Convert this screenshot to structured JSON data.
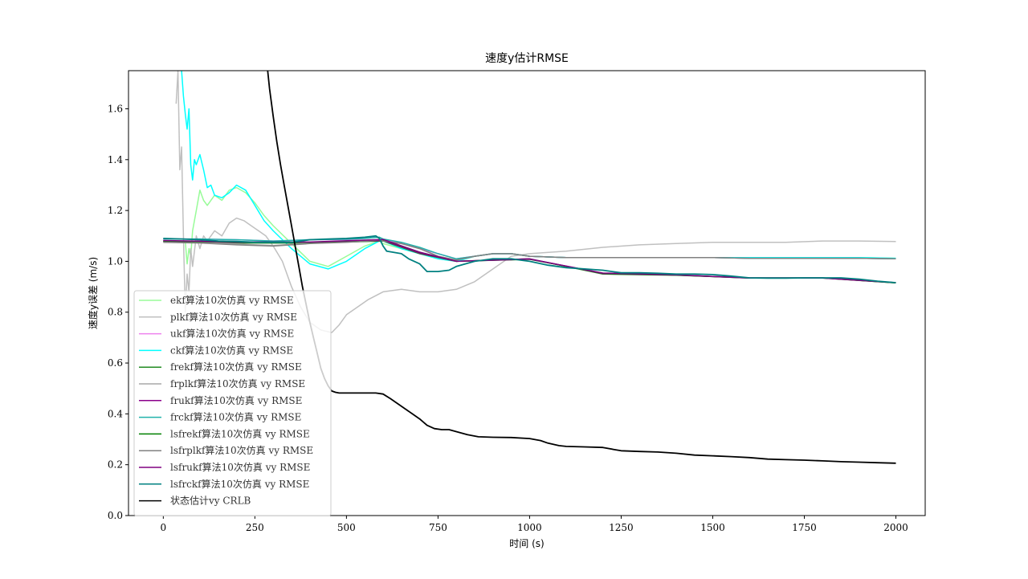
{
  "chart_data": {
    "type": "line",
    "title": "速度y估计RMSE",
    "xlabel": "时间 (s)",
    "ylabel": "速度y误差 (m/s)",
    "xlim": [
      -95,
      2080
    ],
    "ylim": [
      0,
      1.75
    ],
    "xticks": [
      0,
      250,
      500,
      750,
      1000,
      1250,
      1500,
      1750,
      2000
    ],
    "yticks": [
      0.0,
      0.2,
      0.4,
      0.6,
      0.8,
      1.0,
      1.2,
      1.4,
      1.6
    ],
    "xtick_labels": [
      "0",
      "250",
      "500",
      "750",
      "1000",
      "1250",
      "1500",
      "1750",
      "2000"
    ],
    "ytick_labels": [
      "0.0",
      "0.2",
      "0.4",
      "0.6",
      "0.8",
      "1.0",
      "1.2",
      "1.4",
      "1.6"
    ],
    "grid": false,
    "legend_position": "lower-left",
    "series": [
      {
        "name": "ekf算法10次仿真 vy RMSE",
        "color": "#98fb98",
        "width": 1.5,
        "x": [
          60,
          65,
          70,
          75,
          80,
          90,
          100,
          110,
          120,
          140,
          160,
          180,
          200,
          225,
          250,
          275,
          300,
          350,
          400,
          450,
          500,
          550,
          590,
          600,
          650,
          700,
          750,
          800,
          850,
          900,
          950,
          1000,
          1100,
          1200,
          1300,
          1400,
          1500,
          1600,
          1700,
          1800,
          1900,
          2000
        ],
        "y": [
          1.08,
          0.99,
          1.05,
          1.02,
          1.12,
          1.2,
          1.28,
          1.24,
          1.22,
          1.26,
          1.24,
          1.28,
          1.29,
          1.27,
          1.23,
          1.18,
          1.14,
          1.07,
          1.0,
          0.98,
          1.02,
          1.06,
          1.08,
          1.07,
          1.05,
          1.03,
          1.01,
          1.0,
          1.02,
          1.03,
          1.03,
          1.02,
          1.015,
          1.015,
          1.015,
          1.015,
          1.015,
          1.015,
          1.015,
          1.015,
          1.015,
          1.012
        ]
      },
      {
        "name": "plkf算法10次仿真 vy RMSE",
        "color": "#c0c0c0",
        "width": 1.5,
        "x": [
          35,
          40,
          45,
          50,
          55,
          60,
          65,
          70,
          75,
          80,
          90,
          100,
          110,
          120,
          140,
          160,
          180,
          200,
          220,
          240,
          260,
          280,
          300,
          325,
          350,
          375,
          400,
          430,
          460,
          480,
          500,
          530,
          560,
          600,
          650,
          700,
          750,
          800,
          850,
          900,
          950,
          1000,
          1100,
          1200,
          1300,
          1400,
          1500,
          1600,
          1700,
          1800,
          1850,
          1900,
          2000
        ],
        "y": [
          1.62,
          1.75,
          1.36,
          1.45,
          1.1,
          0.8,
          0.95,
          0.88,
          1.05,
          0.98,
          1.1,
          1.05,
          1.1,
          1.08,
          1.12,
          1.1,
          1.15,
          1.17,
          1.16,
          1.14,
          1.12,
          1.1,
          1.06,
          1.0,
          0.9,
          0.82,
          0.76,
          0.73,
          0.72,
          0.75,
          0.79,
          0.82,
          0.85,
          0.88,
          0.89,
          0.88,
          0.88,
          0.89,
          0.92,
          0.97,
          1.02,
          1.03,
          1.04,
          1.055,
          1.065,
          1.07,
          1.075,
          1.075,
          1.075,
          1.08,
          1.08,
          1.08,
          1.078
        ]
      },
      {
        "name": "ukf算法10次仿真 vy RMSE",
        "color": "#ee82ee",
        "width": 1.5,
        "x": [
          0,
          100,
          200,
          300,
          400,
          500,
          550,
          590,
          600,
          650,
          700,
          750,
          800,
          850,
          900,
          950,
          1000,
          1100,
          1200,
          1300,
          1400,
          1500,
          1600,
          1700,
          1800,
          1900,
          2000
        ],
        "y": [
          1.088,
          1.088,
          1.085,
          1.08,
          1.085,
          1.085,
          1.09,
          1.095,
          1.085,
          1.07,
          1.05,
          1.03,
          1.01,
          1.02,
          1.03,
          1.03,
          1.02,
          1.015,
          1.015,
          1.015,
          1.015,
          1.015,
          1.012,
          1.012,
          1.012,
          1.012,
          1.01
        ]
      },
      {
        "name": "ckf算法10次仿真 vy RMSE",
        "color": "#00ffff",
        "width": 1.5,
        "x": [
          50,
          55,
          60,
          65,
          70,
          75,
          80,
          85,
          90,
          100,
          110,
          120,
          130,
          140,
          160,
          180,
          200,
          225,
          250,
          275,
          300,
          350,
          400,
          450,
          500,
          550,
          590,
          600,
          650,
          700,
          750,
          800,
          850,
          900,
          950,
          1000,
          1100,
          1200,
          1300,
          1400,
          1500,
          1600,
          1700,
          1800,
          1900,
          2000
        ],
        "y": [
          1.75,
          1.65,
          1.58,
          1.52,
          1.6,
          1.38,
          1.32,
          1.4,
          1.38,
          1.42,
          1.36,
          1.29,
          1.3,
          1.26,
          1.25,
          1.27,
          1.3,
          1.28,
          1.22,
          1.16,
          1.12,
          1.05,
          0.99,
          0.97,
          1.0,
          1.05,
          1.08,
          1.08,
          1.05,
          1.03,
          1.01,
          1.0,
          1.02,
          1.03,
          1.03,
          1.02,
          1.015,
          1.015,
          1.015,
          1.015,
          1.015,
          1.015,
          1.015,
          1.015,
          1.015,
          1.012
        ]
      },
      {
        "name": "frekf算法10次仿真 vy RMSE",
        "color": "#228b22",
        "width": 1.5,
        "x": [
          0,
          200,
          400,
          600,
          700,
          800,
          1000,
          1200,
          1400,
          1600,
          1800,
          2000
        ],
        "y": [
          1.078,
          1.072,
          1.072,
          1.08,
          1.03,
          1.0,
          1.01,
          0.95,
          0.945,
          0.935,
          0.935,
          0.915
        ]
      },
      {
        "name": "frplkf算法10次仿真 vy RMSE",
        "color": "#a9a9a9",
        "width": 1.5,
        "x": [
          0,
          100,
          200,
          300,
          400,
          500,
          590,
          600,
          650,
          700,
          750,
          800,
          850,
          900,
          950,
          1000,
          1100,
          1200,
          1300,
          1400,
          1500,
          1600,
          1700,
          1800,
          1900,
          2000
        ],
        "y": [
          1.078,
          1.075,
          1.068,
          1.062,
          1.072,
          1.078,
          1.085,
          1.08,
          1.07,
          1.05,
          1.02,
          1.005,
          1.02,
          1.03,
          1.03,
          1.02,
          1.015,
          1.015,
          1.015,
          1.015,
          1.015,
          1.012,
          1.012,
          1.012,
          1.012,
          1.01
        ]
      },
      {
        "name": "frukf算法10次仿真 vy RMSE",
        "color": "#8b008b",
        "width": 1.5,
        "x": [
          0,
          200,
          400,
          600,
          700,
          800,
          1000,
          1200,
          1400,
          1600,
          1800,
          2000
        ],
        "y": [
          1.08,
          1.075,
          1.075,
          1.082,
          1.032,
          1.0,
          1.01,
          0.952,
          0.946,
          0.935,
          0.935,
          0.916
        ]
      },
      {
        "name": "frckf算法10次仿真 vy RMSE",
        "color": "#20b2aa",
        "width": 1.5,
        "x": [
          0,
          100,
          200,
          300,
          400,
          500,
          550,
          590,
          600,
          650,
          700,
          750,
          800,
          850,
          900,
          950,
          1000,
          1100,
          1200,
          1300,
          1400,
          1500,
          1600,
          1700,
          1800,
          1900,
          2000
        ],
        "y": [
          1.088,
          1.088,
          1.085,
          1.08,
          1.085,
          1.087,
          1.09,
          1.095,
          1.088,
          1.075,
          1.055,
          1.03,
          1.01,
          1.02,
          1.03,
          1.03,
          1.02,
          1.015,
          1.015,
          1.015,
          1.015,
          1.015,
          1.012,
          1.012,
          1.012,
          1.012,
          1.01
        ]
      },
      {
        "name": "lsfrekf算法10次仿真 vy RMSE",
        "color": "#008000",
        "width": 1.5,
        "x": [
          0,
          200,
          400,
          600,
          700,
          800,
          1000,
          1200,
          1400,
          1600,
          1800,
          2000
        ],
        "y": [
          1.08,
          1.076,
          1.075,
          1.085,
          1.035,
          1.0,
          1.008,
          0.953,
          0.946,
          0.934,
          0.934,
          0.915
        ]
      },
      {
        "name": "lsfrplkf算法10次仿真 vy RMSE",
        "color": "#808080",
        "width": 1.5,
        "x": [
          0,
          100,
          200,
          300,
          350,
          400,
          500,
          560,
          590,
          600,
          650,
          700,
          750,
          800,
          850,
          900,
          950,
          1000,
          1100,
          1200,
          1300,
          1400,
          1500,
          1600,
          1700,
          1800,
          1900,
          2000
        ],
        "y": [
          1.075,
          1.072,
          1.065,
          1.06,
          1.065,
          1.07,
          1.075,
          1.08,
          1.085,
          1.08,
          1.07,
          1.05,
          1.02,
          1.005,
          1.02,
          1.03,
          1.03,
          1.02,
          1.015,
          1.015,
          1.015,
          1.015,
          1.015,
          1.012,
          1.012,
          1.012,
          1.012,
          1.01
        ]
      },
      {
        "name": "lsfrukf算法10次仿真 vy RMSE",
        "color": "#800080",
        "width": 1.5,
        "x": [
          0,
          200,
          400,
          600,
          700,
          800,
          1000,
          1200,
          1400,
          1600,
          1800,
          2000
        ],
        "y": [
          1.082,
          1.077,
          1.076,
          1.086,
          1.036,
          1.0,
          1.009,
          0.954,
          0.947,
          0.934,
          0.934,
          0.916
        ]
      },
      {
        "name": "lsfrckf算法10次仿真 vy RMSE",
        "color": "#008080",
        "width": 1.8,
        "x": [
          0,
          50,
          100,
          150,
          200,
          250,
          300,
          350,
          400,
          450,
          500,
          550,
          580,
          590,
          600,
          610,
          650,
          670,
          700,
          720,
          750,
          780,
          800,
          850,
          900,
          950,
          1000,
          1050,
          1100,
          1150,
          1200,
          1250,
          1300,
          1350,
          1400,
          1450,
          1500,
          1550,
          1600,
          1650,
          1700,
          1750,
          1800,
          1850,
          1900,
          1950,
          2000
        ],
        "y": [
          1.09,
          1.088,
          1.085,
          1.08,
          1.078,
          1.075,
          1.075,
          1.075,
          1.085,
          1.088,
          1.09,
          1.095,
          1.1,
          1.09,
          1.06,
          1.04,
          1.03,
          1.01,
          0.99,
          0.96,
          0.96,
          0.965,
          0.98,
          1.0,
          1.01,
          1.01,
          1.0,
          0.985,
          0.975,
          0.97,
          0.965,
          0.955,
          0.955,
          0.953,
          0.95,
          0.95,
          0.948,
          0.942,
          0.935,
          0.934,
          0.934,
          0.935,
          0.935,
          0.935,
          0.93,
          0.922,
          0.916
        ]
      },
      {
        "name": "状态估计vy CRLB",
        "color": "#000000",
        "width": 1.8,
        "x": [
          285,
          290,
          300,
          310,
          320,
          330,
          340,
          350,
          360,
          370,
          380,
          390,
          400,
          410,
          420,
          430,
          440,
          450,
          460,
          470,
          480,
          500,
          550,
          580,
          600,
          620,
          650,
          680,
          700,
          720,
          740,
          760,
          780,
          800,
          830,
          860,
          900,
          950,
          1000,
          1030,
          1050,
          1080,
          1100,
          1150,
          1200,
          1230,
          1250,
          1300,
          1350,
          1400,
          1450,
          1500,
          1550,
          1600,
          1650,
          1700,
          1750,
          1800,
          1850,
          1900,
          1950,
          2000
        ],
        "y": [
          1.75,
          1.68,
          1.57,
          1.47,
          1.38,
          1.3,
          1.22,
          1.14,
          1.06,
          0.98,
          0.9,
          0.83,
          0.76,
          0.7,
          0.64,
          0.58,
          0.54,
          0.51,
          0.49,
          0.485,
          0.482,
          0.482,
          0.482,
          0.482,
          0.478,
          0.46,
          0.43,
          0.4,
          0.38,
          0.355,
          0.342,
          0.338,
          0.338,
          0.33,
          0.318,
          0.31,
          0.308,
          0.307,
          0.303,
          0.295,
          0.285,
          0.275,
          0.272,
          0.27,
          0.268,
          0.26,
          0.255,
          0.252,
          0.25,
          0.245,
          0.238,
          0.235,
          0.232,
          0.228,
          0.222,
          0.22,
          0.218,
          0.215,
          0.212,
          0.21,
          0.208,
          0.206
        ]
      }
    ]
  }
}
